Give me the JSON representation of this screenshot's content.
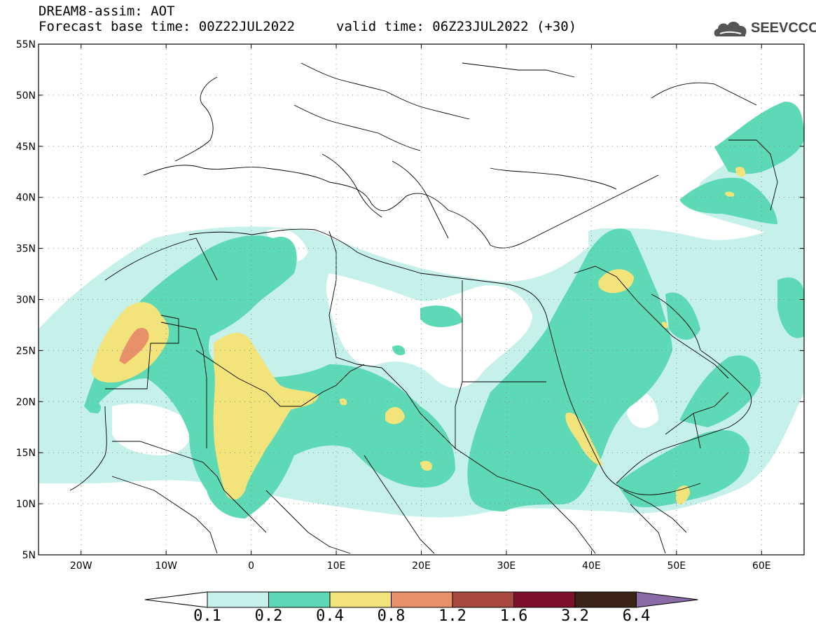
{
  "title": {
    "line1": "DREAM8-assim: AOT",
    "base_time": "Forecast base time: 00Z22JUL2022",
    "valid_time": "valid time: 06Z23JUL2022 (+30)"
  },
  "logo": {
    "text": "SEEVCCC",
    "icon": "cloud-logo-icon"
  },
  "map": {
    "lon_range": [
      -25,
      65
    ],
    "lat_range": [
      5,
      55
    ],
    "lon_ticks": [
      -20,
      -10,
      0,
      10,
      20,
      30,
      40,
      50,
      60
    ],
    "lon_labels": [
      "20W",
      "10W",
      "0",
      "10E",
      "20E",
      "30E",
      "40E",
      "50E",
      "60E"
    ],
    "lat_ticks": [
      5,
      10,
      15,
      20,
      25,
      30,
      35,
      40,
      45,
      50,
      55
    ],
    "lat_labels": [
      "5N",
      "10N",
      "15N",
      "20N",
      "25N",
      "30N",
      "35N",
      "40N",
      "45N",
      "50N",
      "55N"
    ],
    "grid": "dotted"
  },
  "colorbar": {
    "levels": [
      "0.1",
      "0.2",
      "0.4",
      "0.8",
      "1.2",
      "1.6",
      "3.2",
      "6.4"
    ],
    "colors": [
      "#c6f0ea",
      "#5ed9b5",
      "#f3e37b",
      "#e8906a",
      "#a8483e",
      "#7c0f2c",
      "#3b2417",
      "#8a6ba8"
    ],
    "under_color": "#ffffff"
  }
}
